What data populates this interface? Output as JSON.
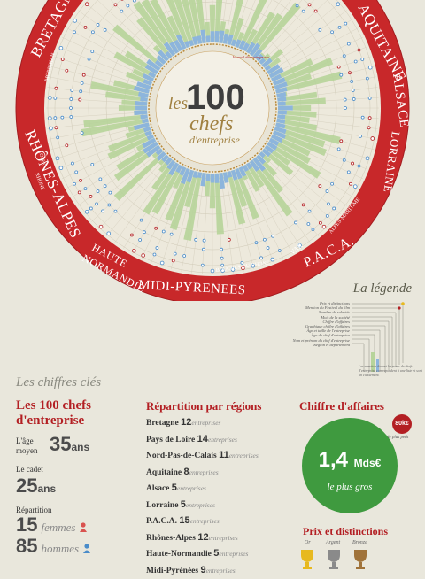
{
  "regions": {
    "bretagne": "BRETAGNE",
    "aquitaine": "AQUITAINE",
    "alsace": "ALSACE",
    "lorraine": "LORRAINE",
    "rhones_alpes": "RHÔNES-ALPES",
    "haute_normandie_1": "HAUTE",
    "haute_normandie_2": "NORMANDIE",
    "midi_pyrenees": "MIDI-PYRENEES",
    "paca": "P.A.C.A.",
    "var": "VAR",
    "alpes_maritimes": "ALPES-MARITIME",
    "bouches_du_rhone": "BOUCHES-DU-RHONE",
    "morbihan": "MORBIHAN",
    "loire": "LOIRE",
    "rhone": "RHÔNE"
  },
  "center": {
    "small": "Journal des entreprises",
    "les": "les",
    "number": "100",
    "chefs": "chefs",
    "sub": "d'entreprise"
  },
  "legend": {
    "title": "La légende",
    "items": [
      "Prix et distinctions",
      "Mention du Festival du film",
      "Nombre de salariés",
      "Mois de la société",
      "Chiffre d'affaires",
      "Graphique chiffre d'affaires",
      "Âge et taille de l'entreprise",
      "Âge du chef d'entreprise",
      "Nom et prénom du chef d'entreprise",
      "Région et département"
    ],
    "note": "Les numéros devant les noms de chefs d'entreprise correspondent à une liste et sont un classement."
  },
  "key": {
    "title": "Les chiffres clés",
    "col1": {
      "heading_1": "Les 100 chefs",
      "heading_2": "d'entreprise",
      "age_label_1": "L'âge",
      "age_label_2": "moyen",
      "age_value": "35",
      "age_unit": "ans",
      "cadet_label": "Le cadet",
      "cadet_value": "25",
      "cadet_unit": "ans",
      "rep_label": "Répartition",
      "femmes_value": "15",
      "femmes_label": "femmes",
      "hommes_value": "85",
      "hommes_label": "hommes"
    },
    "col2": {
      "heading": "Répartition par régions",
      "unit": "entreprises",
      "rows": [
        {
          "name": "Bretagne",
          "count": "12"
        },
        {
          "name": "Pays de Loire",
          "count": "14"
        },
        {
          "name": "Nord-Pas-de-Calais",
          "count": "11"
        },
        {
          "name": "Aquitaine",
          "count": "8"
        },
        {
          "name": "Alsace",
          "count": "5"
        },
        {
          "name": "Lorraine",
          "count": "5"
        },
        {
          "name": "P.A.C.A.",
          "count": "15"
        },
        {
          "name": "Rhônes-Alpes",
          "count": "12"
        },
        {
          "name": "Haute-Normandie",
          "count": "5"
        },
        {
          "name": "Midi-Pyrénées",
          "count": "9"
        }
      ]
    },
    "col3": {
      "heading": "Chiffre d'affaires",
      "value": "1,4",
      "unit": "Mds€",
      "sub": "le plus gros",
      "badge": "80k€",
      "badge_sub": "le plus petit",
      "prix_heading": "Prix et distinctions",
      "medal_or": "Or",
      "medal_argent": "Argent",
      "medal_bronze": "Bronze"
    }
  }
}
